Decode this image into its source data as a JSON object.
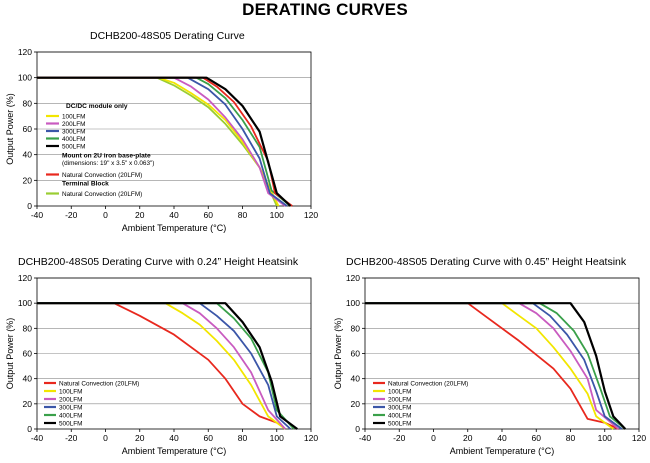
{
  "page_title": "DERATING CURVES",
  "colors": {
    "natural": "#e8281e",
    "lfm100": "#f2e600",
    "lfm200": "#c95bc0",
    "lfm300": "#3b56a8",
    "lfm400": "#3aa04a",
    "lfm500": "#000000",
    "terminal": "#9acd32"
  },
  "chart_data": [
    {
      "type": "line",
      "title": "DCHB200-48S05 Derating Curve",
      "xlabel": "Ambient Temperature (°C)",
      "ylabel": "Output Power (%)",
      "xlim": [
        -40,
        120
      ],
      "ylim": [
        0,
        120
      ],
      "xticks": [
        -40,
        -20,
        0,
        20,
        40,
        60,
        80,
        100,
        120
      ],
      "yticks": [
        0,
        20,
        40,
        60,
        80,
        100,
        120
      ],
      "legend_placement": "left-middle",
      "legend_groups": [
        {
          "heading": "DC/DC module only",
          "entries": [
            "100LFM",
            "200LFM",
            "300LFM",
            "400LFM",
            "500LFM"
          ]
        },
        {
          "heading": "Mount on 2U iron base-plate",
          "subheading": "(dimensions: 19\" x 3.5\" x 0.063\")",
          "entries": [
            "Natural Convection (20LFM)"
          ]
        },
        {
          "heading": "Terminal Block",
          "entries": [
            "Natural Convection (20LFM)"
          ]
        }
      ],
      "series": [
        {
          "key": "terminal",
          "color_key": "terminal",
          "x": [
            -40,
            30,
            40,
            50,
            60,
            70,
            80,
            90,
            100
          ],
          "y": [
            100,
            100,
            94,
            86,
            77,
            64,
            48,
            30,
            0
          ]
        },
        {
          "key": "lfm100",
          "color_key": "lfm100",
          "x": [
            -40,
            31,
            40,
            50,
            60,
            70,
            80,
            90,
            101
          ],
          "y": [
            100,
            100,
            96,
            88,
            79,
            67,
            50,
            30,
            0
          ]
        },
        {
          "key": "lfm200",
          "color_key": "lfm200",
          "x": [
            -40,
            40,
            50,
            60,
            70,
            80,
            90,
            95,
            105
          ],
          "y": [
            100,
            100,
            93,
            83,
            69,
            52,
            30,
            10,
            0
          ]
        },
        {
          "key": "lfm300",
          "color_key": "lfm300",
          "x": [
            -40,
            48,
            60,
            70,
            80,
            90,
            96,
            106
          ],
          "y": [
            100,
            100,
            91,
            79,
            60,
            37,
            10,
            0
          ]
        },
        {
          "key": "lfm400",
          "color_key": "lfm400",
          "x": [
            -40,
            53,
            60,
            70,
            80,
            90,
            97,
            108
          ],
          "y": [
            100,
            100,
            95,
            84,
            67,
            46,
            12,
            0
          ]
        },
        {
          "key": "natural",
          "color_key": "natural",
          "x": [
            -40,
            57,
            65,
            75,
            85,
            95,
            99,
            109
          ],
          "y": [
            100,
            100,
            93,
            81,
            62,
            35,
            10,
            0
          ]
        },
        {
          "key": "lfm500",
          "color_key": "lfm500",
          "x": [
            -40,
            59,
            70,
            80,
            90,
            100,
            108
          ],
          "y": [
            100,
            100,
            91,
            78,
            58,
            10,
            0
          ]
        }
      ]
    },
    {
      "type": "line",
      "title": "DCHB200-48S05 Derating Curve with 0.24” Height Heatsink",
      "xlabel": "Ambient Temperature (°C)",
      "ylabel": "Output Power (%)",
      "xlim": [
        -40,
        120
      ],
      "ylim": [
        0,
        120
      ],
      "xticks": [
        -40,
        -20,
        0,
        20,
        40,
        60,
        80,
        100,
        120
      ],
      "yticks": [
        0,
        20,
        40,
        60,
        80,
        100,
        120
      ],
      "legend_placement": "bottom-left",
      "legend_entries": [
        "Natural Convection (20LFM)",
        "100LFM",
        "200LFM",
        "300LFM",
        "400LFM",
        "500LFM"
      ],
      "series": [
        {
          "name": "Natural Convection (20LFM)",
          "color_key": "natural",
          "x": [
            -40,
            5,
            20,
            40,
            60,
            70,
            80,
            90,
            100
          ],
          "y": [
            100,
            100,
            90,
            75,
            55,
            40,
            20,
            10,
            5
          ]
        },
        {
          "name": "100LFM",
          "color_key": "lfm100",
          "x": [
            -40,
            35,
            45,
            55,
            65,
            75,
            85,
            95,
            105
          ],
          "y": [
            100,
            100,
            92,
            83,
            70,
            55,
            35,
            10,
            0
          ]
        },
        {
          "name": "200LFM",
          "color_key": "lfm200",
          "x": [
            -40,
            45,
            55,
            65,
            75,
            85,
            95,
            105
          ],
          "y": [
            100,
            100,
            92,
            80,
            65,
            45,
            15,
            0
          ]
        },
        {
          "name": "300LFM",
          "color_key": "lfm300",
          "x": [
            -40,
            55,
            65,
            75,
            85,
            95,
            100,
            108
          ],
          "y": [
            100,
            100,
            90,
            78,
            60,
            35,
            10,
            0
          ]
        },
        {
          "name": "400LFM",
          "color_key": "lfm400",
          "x": [
            -40,
            65,
            75,
            85,
            95,
            100,
            110
          ],
          "y": [
            100,
            100,
            88,
            72,
            45,
            15,
            0
          ]
        },
        {
          "name": "500LFM",
          "color_key": "lfm500",
          "x": [
            -40,
            70,
            80,
            90,
            97,
            102,
            112
          ],
          "y": [
            100,
            100,
            85,
            65,
            38,
            10,
            0
          ]
        }
      ]
    },
    {
      "type": "line",
      "title": "DCHB200-48S05 Derating Curve with 0.45” Height Heatsink",
      "xlabel": "Ambient Temperature (°C)",
      "ylabel": "Output Power (%)",
      "xlim": [
        -40,
        120
      ],
      "ylim": [
        0,
        120
      ],
      "xticks": [
        -40,
        -20,
        0,
        20,
        40,
        60,
        80,
        100,
        120
      ],
      "yticks": [
        0,
        20,
        40,
        60,
        80,
        100,
        120
      ],
      "legend_placement": "bottom-left",
      "legend_entries": [
        "Natural Convection (20LFM)",
        "100LFM",
        "200LFM",
        "300LFM",
        "400LFM",
        "500LFM"
      ],
      "series": [
        {
          "name": "Natural Convection (20LFM)",
          "color_key": "natural",
          "x": [
            -40,
            20,
            30,
            50,
            70,
            80,
            90,
            100,
            108
          ],
          "y": [
            100,
            100,
            90,
            70,
            48,
            32,
            8,
            5,
            0
          ]
        },
        {
          "name": "100LFM",
          "color_key": "lfm100",
          "x": [
            -40,
            40,
            50,
            60,
            70,
            80,
            90,
            95,
            105
          ],
          "y": [
            100,
            100,
            90,
            80,
            65,
            48,
            28,
            10,
            0
          ]
        },
        {
          "name": "200LFM",
          "color_key": "lfm200",
          "x": [
            -40,
            50,
            60,
            70,
            80,
            90,
            95,
            108
          ],
          "y": [
            100,
            100,
            92,
            80,
            62,
            40,
            15,
            0
          ]
        },
        {
          "name": "300LFM",
          "color_key": "lfm300",
          "x": [
            -40,
            58,
            68,
            78,
            88,
            95,
            100,
            110
          ],
          "y": [
            100,
            100,
            90,
            75,
            55,
            30,
            10,
            0
          ]
        },
        {
          "name": "400LFM",
          "color_key": "lfm400",
          "x": [
            -40,
            62,
            72,
            82,
            90,
            98,
            103,
            112
          ],
          "y": [
            100,
            100,
            92,
            78,
            60,
            30,
            10,
            0
          ]
        },
        {
          "name": "500LFM",
          "color_key": "lfm500",
          "x": [
            -40,
            80,
            88,
            95,
            100,
            105,
            112
          ],
          "y": [
            100,
            100,
            85,
            58,
            30,
            10,
            0
          ]
        }
      ]
    }
  ]
}
